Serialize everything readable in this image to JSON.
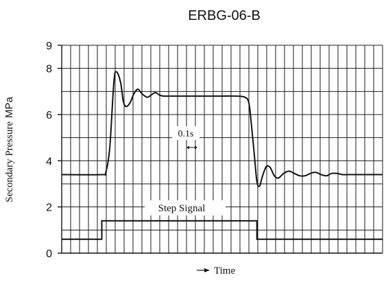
{
  "chart_data": {
    "type": "line",
    "title": "ERBG-06-B",
    "ylabel": {
      "text": "Secondary Pressure",
      "unit": "MPa"
    },
    "xlabel": "Time",
    "ylim": [
      0,
      9
    ],
    "yticks": [
      "0",
      "2",
      "4",
      "6",
      "8",
      "9"
    ],
    "x_scale_note": "0.1s",
    "grid": true,
    "series": [
      {
        "name": "",
        "values_x": [
          0,
          1.5,
          1.65,
          1.8,
          1.95,
          2.05,
          2.2,
          2.3,
          2.4,
          2.55,
          2.7,
          2.85,
          3.0,
          3.2,
          3.35,
          3.5,
          3.65,
          3.8,
          3.95,
          4.1,
          4.25,
          4.5,
          5.0,
          5.5,
          6.0,
          6.5,
          6.85,
          7.0,
          7.1,
          7.2,
          7.3,
          7.4,
          7.5,
          7.65,
          7.8,
          7.95,
          8.1,
          8.3,
          8.5,
          8.7,
          8.9,
          9.1,
          9.3,
          9.5,
          9.7,
          9.9,
          10.1,
          10.3,
          10.5,
          10.7,
          10.9,
          11.1,
          11.3,
          11.5,
          11.75,
          12.0
        ],
        "values_y": [
          3.4,
          3.4,
          3.5,
          4.6,
          7.4,
          7.85,
          7.4,
          6.6,
          6.35,
          6.5,
          6.9,
          7.1,
          6.9,
          6.75,
          6.85,
          6.95,
          6.85,
          6.8,
          6.8,
          6.8,
          6.8,
          6.8,
          6.8,
          6.8,
          6.8,
          6.8,
          6.75,
          6.5,
          5.5,
          4.3,
          3.1,
          2.9,
          3.3,
          3.75,
          3.7,
          3.35,
          3.25,
          3.45,
          3.55,
          3.45,
          3.35,
          3.35,
          3.45,
          3.5,
          3.4,
          3.35,
          3.45,
          3.45,
          3.4,
          3.4,
          3.4,
          3.4,
          3.4,
          3.4,
          3.4,
          3.4
        ]
      },
      {
        "name": "Step Signal",
        "values_x": [
          0,
          1.5,
          1.5,
          7.3,
          7.3,
          12.0
        ],
        "values_y": [
          0.6,
          0.6,
          1.4,
          1.4,
          0.6,
          0.6
        ]
      }
    ]
  }
}
